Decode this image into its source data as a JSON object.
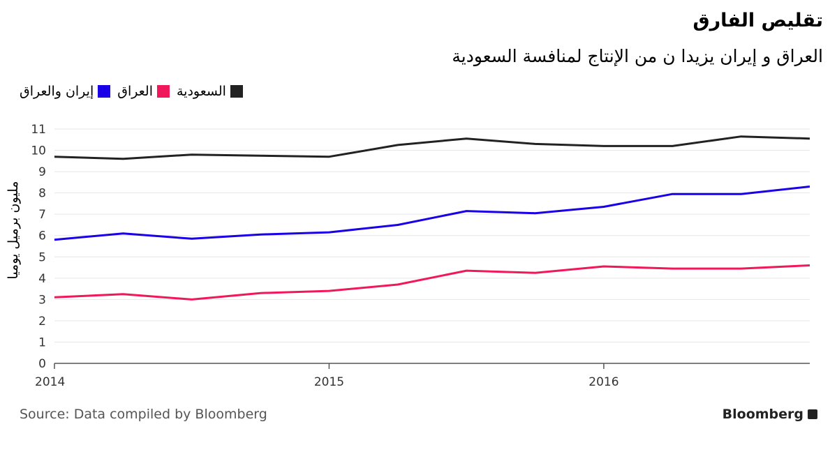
{
  "chart_data": {
    "type": "line",
    "title": "تقليص الفارق",
    "subtitle": "العراق و إيران يزيدا ن من الإنتاج لمنافسة السعودية",
    "ylabel": "مليون برميل يوميا",
    "xlabel": "",
    "ylim": [
      0,
      11
    ],
    "yticks": [
      0,
      1,
      2,
      3,
      4,
      5,
      6,
      7,
      8,
      9,
      10,
      11
    ],
    "xlim": [
      2014.0,
      2016.75
    ],
    "xticks": [
      2014,
      2015,
      2016
    ],
    "xtick_labels": [
      "2014",
      "2015",
      "2016"
    ],
    "grid": true,
    "legend_position": "top-left",
    "x": [
      2014.0,
      2014.25,
      2014.5,
      2014.75,
      2015.0,
      2015.25,
      2015.5,
      2015.75,
      2016.0,
      2016.25,
      2016.5,
      2016.75
    ],
    "series": [
      {
        "name": "السعودية",
        "color": "#222222",
        "values": [
          9.7,
          9.6,
          9.8,
          9.75,
          9.7,
          10.25,
          10.55,
          10.3,
          10.2,
          10.2,
          10.65,
          10.55
        ]
      },
      {
        "name": "العراق",
        "color": "#f0185a",
        "values": [
          3.1,
          3.25,
          3.0,
          3.3,
          3.4,
          3.7,
          4.35,
          4.25,
          4.55,
          4.45,
          4.45,
          4.6
        ]
      },
      {
        "name": "إيران والعراق",
        "color": "#1a00e6",
        "values": [
          5.8,
          6.1,
          5.85,
          6.05,
          6.15,
          6.5,
          7.15,
          7.05,
          7.35,
          7.95,
          7.95,
          8.3
        ]
      }
    ],
    "source": "Source: Data compiled by Bloomberg",
    "brand": "Bloomberg"
  }
}
